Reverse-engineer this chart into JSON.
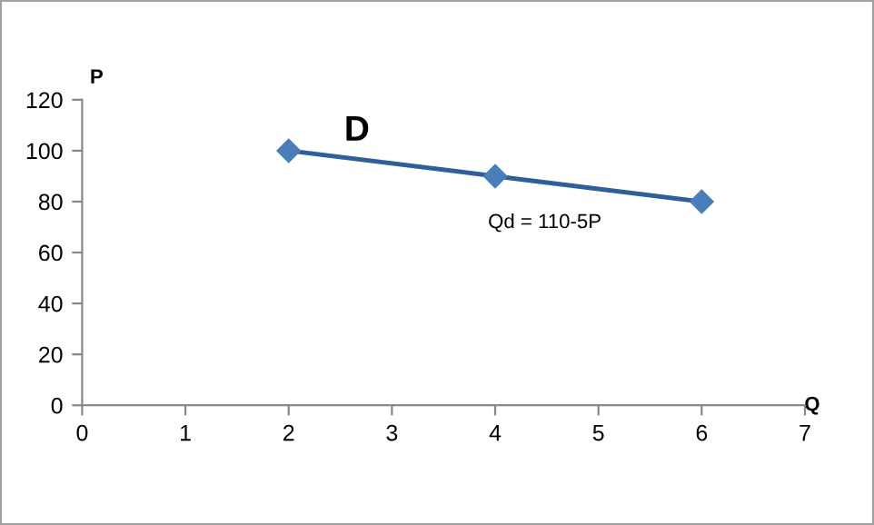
{
  "chart_data": {
    "type": "line",
    "x": [
      2,
      4,
      6
    ],
    "series": [
      {
        "name": "D",
        "color": "#2f5f9a",
        "values": [
          100,
          90,
          80
        ]
      }
    ],
    "xlabel": "Q",
    "ylabel": "P",
    "annotations": [
      "Qd = 110-5P"
    ],
    "xlim": [
      0,
      7
    ],
    "xticks": [
      0,
      1,
      2,
      3,
      4,
      5,
      6,
      7
    ],
    "ylim": [
      0,
      120
    ],
    "yticks": [
      0,
      20,
      40,
      60,
      80,
      100,
      120
    ],
    "marker": "diamond",
    "line_style": "solid",
    "grid": false,
    "legend": false
  }
}
